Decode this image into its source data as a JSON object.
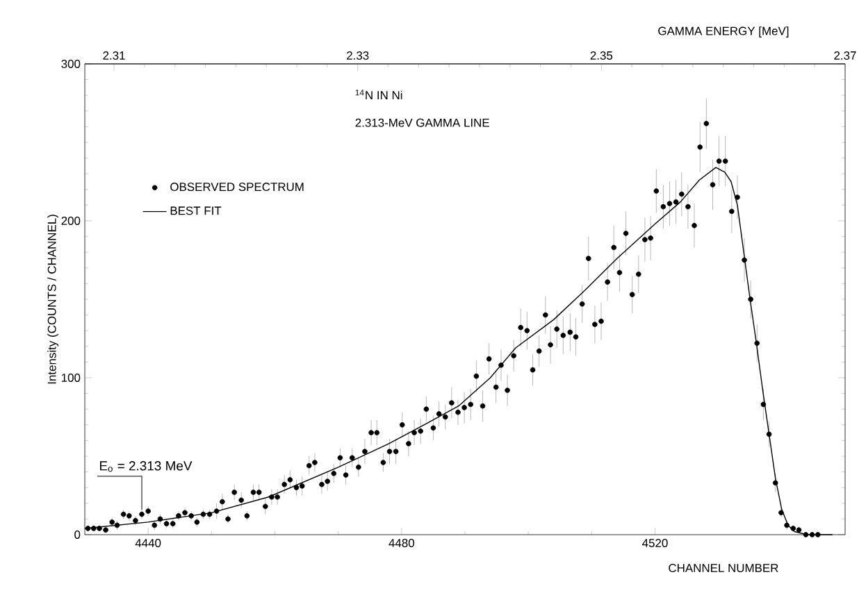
{
  "chart_data": {
    "type": "scatter",
    "xlabel": "CHANNEL NUMBER",
    "ylabel": "Intensity (COUNTS / CHANNEL)",
    "x2label": "GAMMA ENERGY  [MeV]",
    "xlim": [
      4430,
      4550
    ],
    "xticks": [
      4440,
      4480,
      4520
    ],
    "ylim": [
      0,
      300
    ],
    "yticks": [
      0,
      100,
      200,
      300
    ],
    "x2lim": [
      2.3076,
      2.37
    ],
    "x2ticks": [
      2.31,
      2.33,
      2.35,
      2.37
    ],
    "legend": "top left",
    "grid": false,
    "annotations": [
      "$^{14}$N IN Ni",
      "2.313-MeV GAMMA LINE",
      {
        "text": "E$_{o}$ = 2.313 MeV",
        "x": 4439,
        "y": 16
      }
    ],
    "series": [
      {
        "name": "OBSERVED SPECTRUM",
        "color": "#000000",
        "marker": "circle",
        "x": [
          4430.5,
          4431.4,
          4432.3,
          4433.3,
          4434.3,
          4435.1,
          4436.1,
          4437.0,
          4438.0,
          4439.0,
          4440.0,
          4441.0,
          4441.9,
          4442.9,
          4443.9,
          4444.8,
          4445.8,
          4446.8,
          4447.7,
          4448.7,
          4449.7,
          4450.8,
          4451.7,
          4452.6,
          4453.6,
          4454.7,
          4455.6,
          4456.6,
          4457.5,
          4458.5,
          4459.5,
          4460.4,
          4461.5,
          4462.4,
          4463.4,
          4464.3,
          4465.4,
          4466.3,
          4467.4,
          4468.3,
          4469.3,
          4470.3,
          4471.2,
          4472.2,
          4473.2,
          4474.2,
          4475.2,
          4476.1,
          4477.1,
          4478.1,
          4479.1,
          4480.1,
          4481.1,
          4482.0,
          4483.0,
          4483.9,
          4485.0,
          4485.9,
          4486.9,
          4487.9,
          4488.9,
          4489.9,
          4490.9,
          4491.8,
          4492.8,
          4493.8,
          4494.9,
          4495.7,
          4496.7,
          4497.7,
          4498.8,
          4499.8,
          4500.7,
          4501.7,
          4502.7,
          4503.5,
          4504.5,
          4505.5,
          4506.6,
          4507.5,
          4508.5,
          4509.5,
          4510.5,
          4511.5,
          4512.5,
          4513.5,
          4514.4,
          4515.4,
          4516.4,
          4517.4,
          4518.4,
          4519.3,
          4520.2,
          4521.3,
          4522.3,
          4523.3,
          4524.2,
          4525.2,
          4526.2,
          4527.1,
          4528.1,
          4529.1,
          4530.1,
          4531.1,
          4532.1,
          4533.0,
          4534.1,
          4535.1,
          4536.1,
          4537.1,
          4538.0,
          4539.0,
          4539.9,
          4540.8,
          4541.8,
          4542.7,
          4543.8,
          4544.8,
          4545.7
        ],
        "values": [
          4,
          4,
          4,
          3,
          8,
          6,
          13,
          12,
          9,
          13,
          15,
          6,
          10,
          7,
          7,
          12,
          14,
          12,
          8,
          13,
          13,
          15,
          21,
          10,
          27,
          22,
          12,
          27,
          27,
          18,
          24,
          24,
          32,
          35,
          30,
          31,
          44,
          46,
          32,
          34,
          39,
          49,
          38,
          49,
          43,
          53,
          65,
          65,
          46,
          53,
          53,
          70,
          58,
          65,
          66,
          80,
          68,
          77,
          75,
          84,
          78,
          81,
          83,
          101,
          82,
          112,
          94,
          108,
          92,
          114,
          132,
          130,
          105,
          117,
          140,
          121,
          131,
          127,
          129,
          126,
          147,
          176,
          134,
          136,
          161,
          183,
          167,
          192,
          153,
          166,
          188,
          189,
          219,
          209,
          211,
          212,
          217,
          209,
          197,
          247,
          262,
          223,
          238,
          238,
          206,
          215,
          175,
          150,
          122,
          83,
          64,
          33,
          14,
          6,
          4,
          3,
          0,
          0,
          0
        ],
        "errors": [
          2,
          2,
          2,
          2,
          3,
          3,
          3,
          3,
          3,
          3,
          3,
          3,
          3,
          3,
          3,
          3,
          3,
          3,
          3,
          3,
          3,
          5,
          5,
          3,
          5,
          5,
          3,
          5,
          5,
          5,
          5,
          5,
          6,
          6,
          5,
          6,
          6,
          6,
          6,
          6,
          6,
          6,
          6,
          6,
          6,
          8,
          8,
          8,
          6,
          8,
          8,
          8,
          8,
          8,
          8,
          8,
          8,
          8,
          8,
          10,
          8,
          10,
          10,
          10,
          10,
          10,
          10,
          10,
          10,
          10,
          12,
          12,
          10,
          10,
          12,
          12,
          12,
          12,
          12,
          12,
          12,
          14,
          12,
          12,
          12,
          14,
          12,
          14,
          12,
          12,
          14,
          14,
          14,
          14,
          14,
          14,
          14,
          14,
          14,
          16,
          16,
          16,
          16,
          16,
          14,
          14,
          14,
          12,
          12,
          10,
          8,
          6,
          3,
          3,
          2,
          2,
          1,
          1,
          1
        ]
      },
      {
        "name": "BEST FIT",
        "type": "line",
        "color": "#000000",
        "marker": "none",
        "line_style": "solid",
        "x": [
          4430,
          4440,
          4450,
          4459,
          4470,
          4478,
          4484,
          4489,
          4494,
          4498,
          4504,
          4509,
          4514,
          4520,
          4524,
          4527,
          4529.6,
          4531,
          4532,
          4533,
          4534,
          4535,
          4536,
          4537,
          4538,
          4539,
          4540,
          4541,
          4542,
          4543,
          4544,
          4548
        ],
        "values": [
          4,
          8,
          14,
          24,
          43,
          58,
          71,
          82,
          100,
          119,
          137,
          156,
          176,
          198,
          212,
          226,
          234,
          231,
          225,
          210,
          180,
          150,
          122,
          92,
          64,
          36,
          16,
          6,
          2,
          1,
          0,
          0
        ]
      }
    ]
  }
}
